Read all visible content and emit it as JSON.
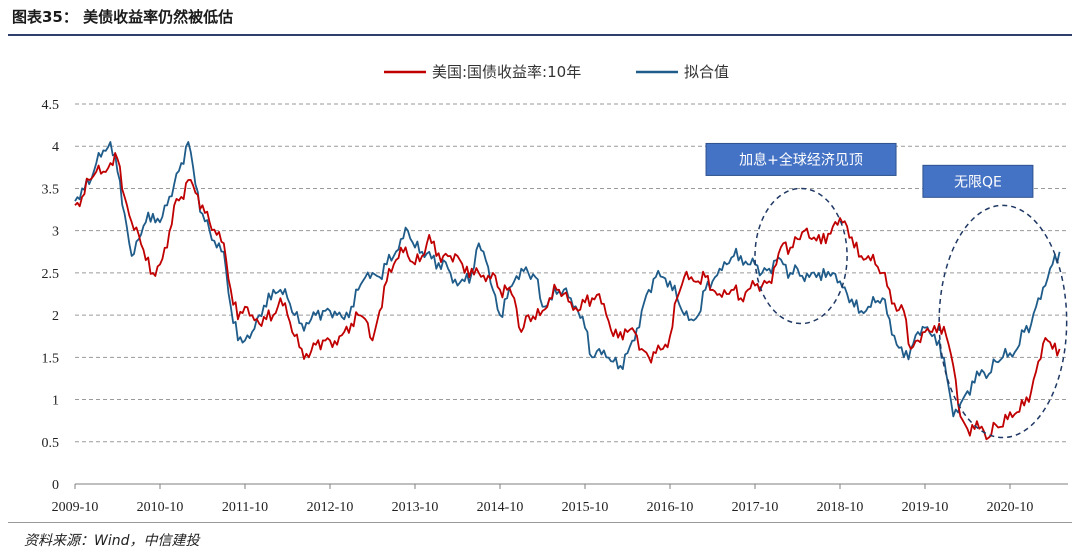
{
  "figure": {
    "title": "图表35： 美债收益率仍然被低估",
    "source": "资料来源：Wind，中信建投"
  },
  "chart_data": {
    "type": "line",
    "x_ticks": [
      "2009-10",
      "2010-10",
      "2011-10",
      "2012-10",
      "2013-10",
      "2014-10",
      "2015-10",
      "2016-10",
      "2017-10",
      "2018-10",
      "2019-10",
      "2020-10"
    ],
    "ylim": [
      0,
      4.5
    ],
    "y_ticks": [
      0,
      0.5,
      1,
      1.5,
      2,
      2.5,
      3,
      3.5,
      4,
      4.5
    ],
    "y_tick_labels": [
      "0",
      "0.5",
      "1",
      "1.5",
      "2",
      "2.5",
      "3",
      "3.5",
      "4",
      "4.5"
    ],
    "grid": "horizontal dashed",
    "legend_position": "top-center",
    "series": [
      {
        "name": "美国:国债收益率:10年",
        "color": "#c00000",
        "x": [
          "2009-10",
          "2009-11",
          "2009-12",
          "2010-01",
          "2010-02",
          "2010-03",
          "2010-04",
          "2010-05",
          "2010-06",
          "2010-07",
          "2010-08",
          "2010-09",
          "2010-10",
          "2010-11",
          "2010-12",
          "2011-01",
          "2011-02",
          "2011-03",
          "2011-04",
          "2011-05",
          "2011-06",
          "2011-07",
          "2011-08",
          "2011-09",
          "2011-10",
          "2011-11",
          "2011-12",
          "2012-01",
          "2012-02",
          "2012-03",
          "2012-04",
          "2012-05",
          "2012-06",
          "2012-07",
          "2012-08",
          "2012-09",
          "2012-10",
          "2012-11",
          "2012-12",
          "2013-01",
          "2013-02",
          "2013-03",
          "2013-04",
          "2013-05",
          "2013-06",
          "2013-07",
          "2013-08",
          "2013-09",
          "2013-10",
          "2013-11",
          "2013-12",
          "2014-01",
          "2014-02",
          "2014-03",
          "2014-04",
          "2014-05",
          "2014-06",
          "2014-07",
          "2014-08",
          "2014-09",
          "2014-10",
          "2014-11",
          "2014-12",
          "2015-01",
          "2015-02",
          "2015-03",
          "2015-04",
          "2015-05",
          "2015-06",
          "2015-07",
          "2015-08",
          "2015-09",
          "2015-10",
          "2015-11",
          "2015-12",
          "2016-01",
          "2016-02",
          "2016-03",
          "2016-04",
          "2016-05",
          "2016-06",
          "2016-07",
          "2016-08",
          "2016-09",
          "2016-10",
          "2016-11",
          "2016-12",
          "2017-01",
          "2017-02",
          "2017-03",
          "2017-04",
          "2017-05",
          "2017-06",
          "2017-07",
          "2017-08",
          "2017-09",
          "2017-10",
          "2017-11",
          "2017-12",
          "2018-01",
          "2018-02",
          "2018-03",
          "2018-04",
          "2018-05",
          "2018-06",
          "2018-07",
          "2018-08",
          "2018-09",
          "2018-10",
          "2018-11",
          "2018-12",
          "2019-01",
          "2019-02",
          "2019-03",
          "2019-04",
          "2019-05",
          "2019-06",
          "2019-07",
          "2019-08",
          "2019-09",
          "2019-10",
          "2019-11",
          "2019-12",
          "2020-01",
          "2020-02",
          "2020-03",
          "2020-04",
          "2020-05",
          "2020-06",
          "2020-07",
          "2020-08",
          "2020-09",
          "2020-10",
          "2020-11",
          "2020-12",
          "2021-01",
          "2021-02",
          "2021-03",
          "2021-04",
          "2021-05"
        ],
        "values": [
          3.3,
          3.4,
          3.6,
          3.7,
          3.7,
          3.8,
          3.85,
          3.4,
          3.1,
          2.95,
          2.65,
          2.5,
          2.6,
          2.8,
          3.3,
          3.4,
          3.6,
          3.45,
          3.3,
          3.1,
          2.95,
          2.85,
          2.3,
          1.95,
          2.1,
          2.0,
          1.9,
          1.95,
          2.0,
          2.2,
          2.0,
          1.75,
          1.6,
          1.5,
          1.65,
          1.7,
          1.7,
          1.65,
          1.8,
          1.9,
          2.0,
          1.95,
          1.7,
          2.05,
          2.4,
          2.6,
          2.8,
          2.7,
          2.6,
          2.7,
          2.95,
          2.7,
          2.7,
          2.7,
          2.7,
          2.5,
          2.55,
          2.5,
          2.4,
          2.5,
          2.3,
          2.3,
          2.2,
          1.8,
          2.0,
          1.95,
          2.05,
          2.2,
          2.3,
          2.25,
          2.15,
          2.05,
          2.15,
          2.2,
          2.25,
          2.0,
          1.75,
          1.8,
          1.8,
          1.8,
          1.6,
          1.5,
          1.55,
          1.6,
          1.75,
          2.2,
          2.45,
          2.45,
          2.4,
          2.45,
          2.3,
          2.25,
          2.25,
          2.3,
          2.2,
          2.3,
          2.35,
          2.35,
          2.4,
          2.6,
          2.85,
          2.8,
          2.9,
          3.0,
          2.9,
          2.95,
          2.85,
          3.05,
          3.15,
          3.05,
          2.8,
          2.7,
          2.7,
          2.6,
          2.5,
          2.3,
          2.05,
          2.05,
          1.6,
          1.7,
          1.8,
          1.8,
          1.9,
          1.75,
          1.4,
          0.8,
          0.65,
          0.65,
          0.68,
          0.55,
          0.7,
          0.68,
          0.85,
          0.85,
          0.93,
          1.1,
          1.45,
          1.73,
          1.6,
          1.6
        ]
      },
      {
        "name": "拟合值",
        "color": "#1f5c8a",
        "x": [
          "2009-10",
          "2009-11",
          "2009-12",
          "2010-01",
          "2010-02",
          "2010-03",
          "2010-04",
          "2010-05",
          "2010-06",
          "2010-07",
          "2010-08",
          "2010-09",
          "2010-10",
          "2010-11",
          "2010-12",
          "2011-01",
          "2011-02",
          "2011-03",
          "2011-04",
          "2011-05",
          "2011-06",
          "2011-07",
          "2011-08",
          "2011-09",
          "2011-10",
          "2011-11",
          "2011-12",
          "2012-01",
          "2012-02",
          "2012-03",
          "2012-04",
          "2012-05",
          "2012-06",
          "2012-07",
          "2012-08",
          "2012-09",
          "2012-10",
          "2012-11",
          "2012-12",
          "2013-01",
          "2013-02",
          "2013-03",
          "2013-04",
          "2013-05",
          "2013-06",
          "2013-07",
          "2013-08",
          "2013-09",
          "2013-10",
          "2013-11",
          "2013-12",
          "2014-01",
          "2014-02",
          "2014-03",
          "2014-04",
          "2014-05",
          "2014-06",
          "2014-07",
          "2014-08",
          "2014-09",
          "2014-10",
          "2014-11",
          "2014-12",
          "2015-01",
          "2015-02",
          "2015-03",
          "2015-04",
          "2015-05",
          "2015-06",
          "2015-07",
          "2015-08",
          "2015-09",
          "2015-10",
          "2015-11",
          "2015-12",
          "2016-01",
          "2016-02",
          "2016-03",
          "2016-04",
          "2016-05",
          "2016-06",
          "2016-07",
          "2016-08",
          "2016-09",
          "2016-10",
          "2016-11",
          "2016-12",
          "2017-01",
          "2017-02",
          "2017-03",
          "2017-04",
          "2017-05",
          "2017-06",
          "2017-07",
          "2017-08",
          "2017-09",
          "2017-10",
          "2017-11",
          "2017-12",
          "2018-01",
          "2018-02",
          "2018-03",
          "2018-04",
          "2018-05",
          "2018-06",
          "2018-07",
          "2018-08",
          "2018-09",
          "2018-10",
          "2018-11",
          "2018-12",
          "2019-01",
          "2019-02",
          "2019-03",
          "2019-04",
          "2019-05",
          "2019-06",
          "2019-07",
          "2019-08",
          "2019-09",
          "2019-10",
          "2019-11",
          "2019-12",
          "2020-01",
          "2020-02",
          "2020-03",
          "2020-04",
          "2020-05",
          "2020-06",
          "2020-07",
          "2020-08",
          "2020-09",
          "2020-10",
          "2020-11",
          "2020-12",
          "2021-01",
          "2021-02",
          "2021-03",
          "2021-04",
          "2021-05"
        ],
        "values": [
          3.35,
          3.5,
          3.55,
          3.8,
          3.95,
          4.05,
          3.7,
          3.2,
          2.7,
          2.9,
          3.1,
          3.2,
          3.1,
          3.3,
          3.55,
          3.8,
          4.05,
          3.55,
          3.2,
          3.0,
          2.8,
          2.75,
          2.1,
          1.7,
          1.7,
          1.8,
          2.0,
          2.1,
          2.3,
          2.3,
          2.2,
          2.0,
          1.9,
          1.9,
          2.0,
          2.05,
          2.05,
          2.0,
          1.95,
          2.1,
          2.3,
          2.45,
          2.5,
          2.45,
          2.6,
          2.7,
          2.9,
          3.0,
          2.8,
          2.75,
          2.75,
          2.55,
          2.65,
          2.5,
          2.35,
          2.4,
          2.5,
          2.85,
          2.65,
          2.3,
          2.0,
          2.2,
          2.4,
          2.55,
          2.5,
          2.45,
          2.1,
          2.2,
          2.25,
          2.3,
          2.2,
          2.05,
          1.85,
          1.5,
          1.6,
          1.5,
          1.45,
          1.4,
          1.55,
          1.7,
          2.05,
          2.3,
          2.45,
          2.45,
          2.4,
          2.2,
          2.0,
          1.95,
          2.0,
          2.3,
          2.4,
          2.55,
          2.6,
          2.7,
          2.7,
          2.6,
          2.6,
          2.5,
          2.55,
          2.65,
          2.6,
          2.5,
          2.55,
          2.4,
          2.5,
          2.5,
          2.45,
          2.5,
          2.4,
          2.25,
          2.1,
          2.05,
          2.1,
          2.15,
          2.2,
          1.95,
          1.65,
          1.5,
          1.6,
          1.8,
          1.85,
          1.75,
          1.7,
          1.3,
          0.8,
          0.95,
          1.1,
          1.2,
          1.35,
          1.3,
          1.45,
          1.5,
          1.55,
          1.6,
          1.8,
          1.9,
          2.2,
          2.35,
          2.6,
          2.75
        ]
      }
    ],
    "annotations": [
      {
        "text": "加息+全球经济见顶",
        "x_range": [
          "2017-10",
          "2018-11"
        ],
        "y_range": [
          1.9,
          3.5
        ]
      },
      {
        "text": "无限QE",
        "x_range": [
          "2019-12",
          "2021-06"
        ],
        "y_range": [
          0.55,
          3.3
        ]
      }
    ]
  }
}
